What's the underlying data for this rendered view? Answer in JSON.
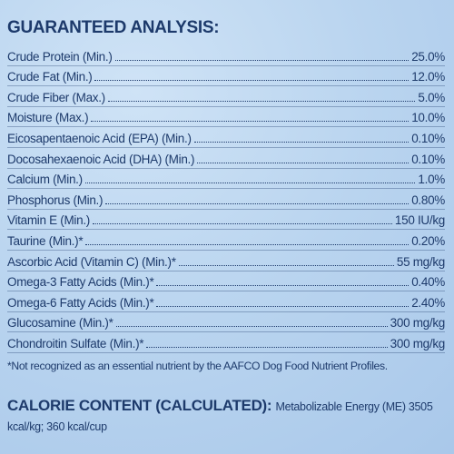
{
  "header": {
    "title": "GUARANTEED ANALYSIS:"
  },
  "table": {
    "rows": [
      [
        "Crude Protein (Min.)",
        "25.0%"
      ],
      [
        "Crude Fat (Min.)",
        "12.0%"
      ],
      [
        "Crude Fiber (Max.)",
        "5.0%"
      ],
      [
        "Moisture (Max.)",
        "10.0%"
      ],
      [
        "Eicosapentaenoic Acid (EPA) (Min.)",
        "0.10%"
      ],
      [
        "Docosahexaenoic Acid (DHA) (Min.)",
        "0.10%"
      ],
      [
        "Calcium (Min.)",
        "1.0%"
      ],
      [
        "Phosphorus (Min.)",
        "0.80%"
      ],
      [
        "Vitamin E (Min.)",
        "150 IU/kg"
      ],
      [
        "Taurine (Min.)*",
        "0.20%"
      ],
      [
        "Ascorbic Acid (Vitamin C) (Min.)*",
        "55 mg/kg"
      ],
      [
        "Omega-3 Fatty Acids (Min.)*",
        "0.40%"
      ],
      [
        "Omega-6 Fatty Acids (Min.)*",
        "2.40%"
      ],
      [
        "Glucosamine (Min.)*",
        "300 mg/kg"
      ],
      [
        "Chondroitin Sulfate (Min.)*",
        "300 mg/kg"
      ]
    ]
  },
  "footnote": "*Not recognized as an essential nutrient by the AAFCO Dog Food Nutrient Profiles.",
  "calorie": {
    "heading": "CALORIE CONTENT (CALCULATED):",
    "text": "Metabolizable Energy (ME) 3505 kcal/kg; 360 kcal/cup"
  }
}
